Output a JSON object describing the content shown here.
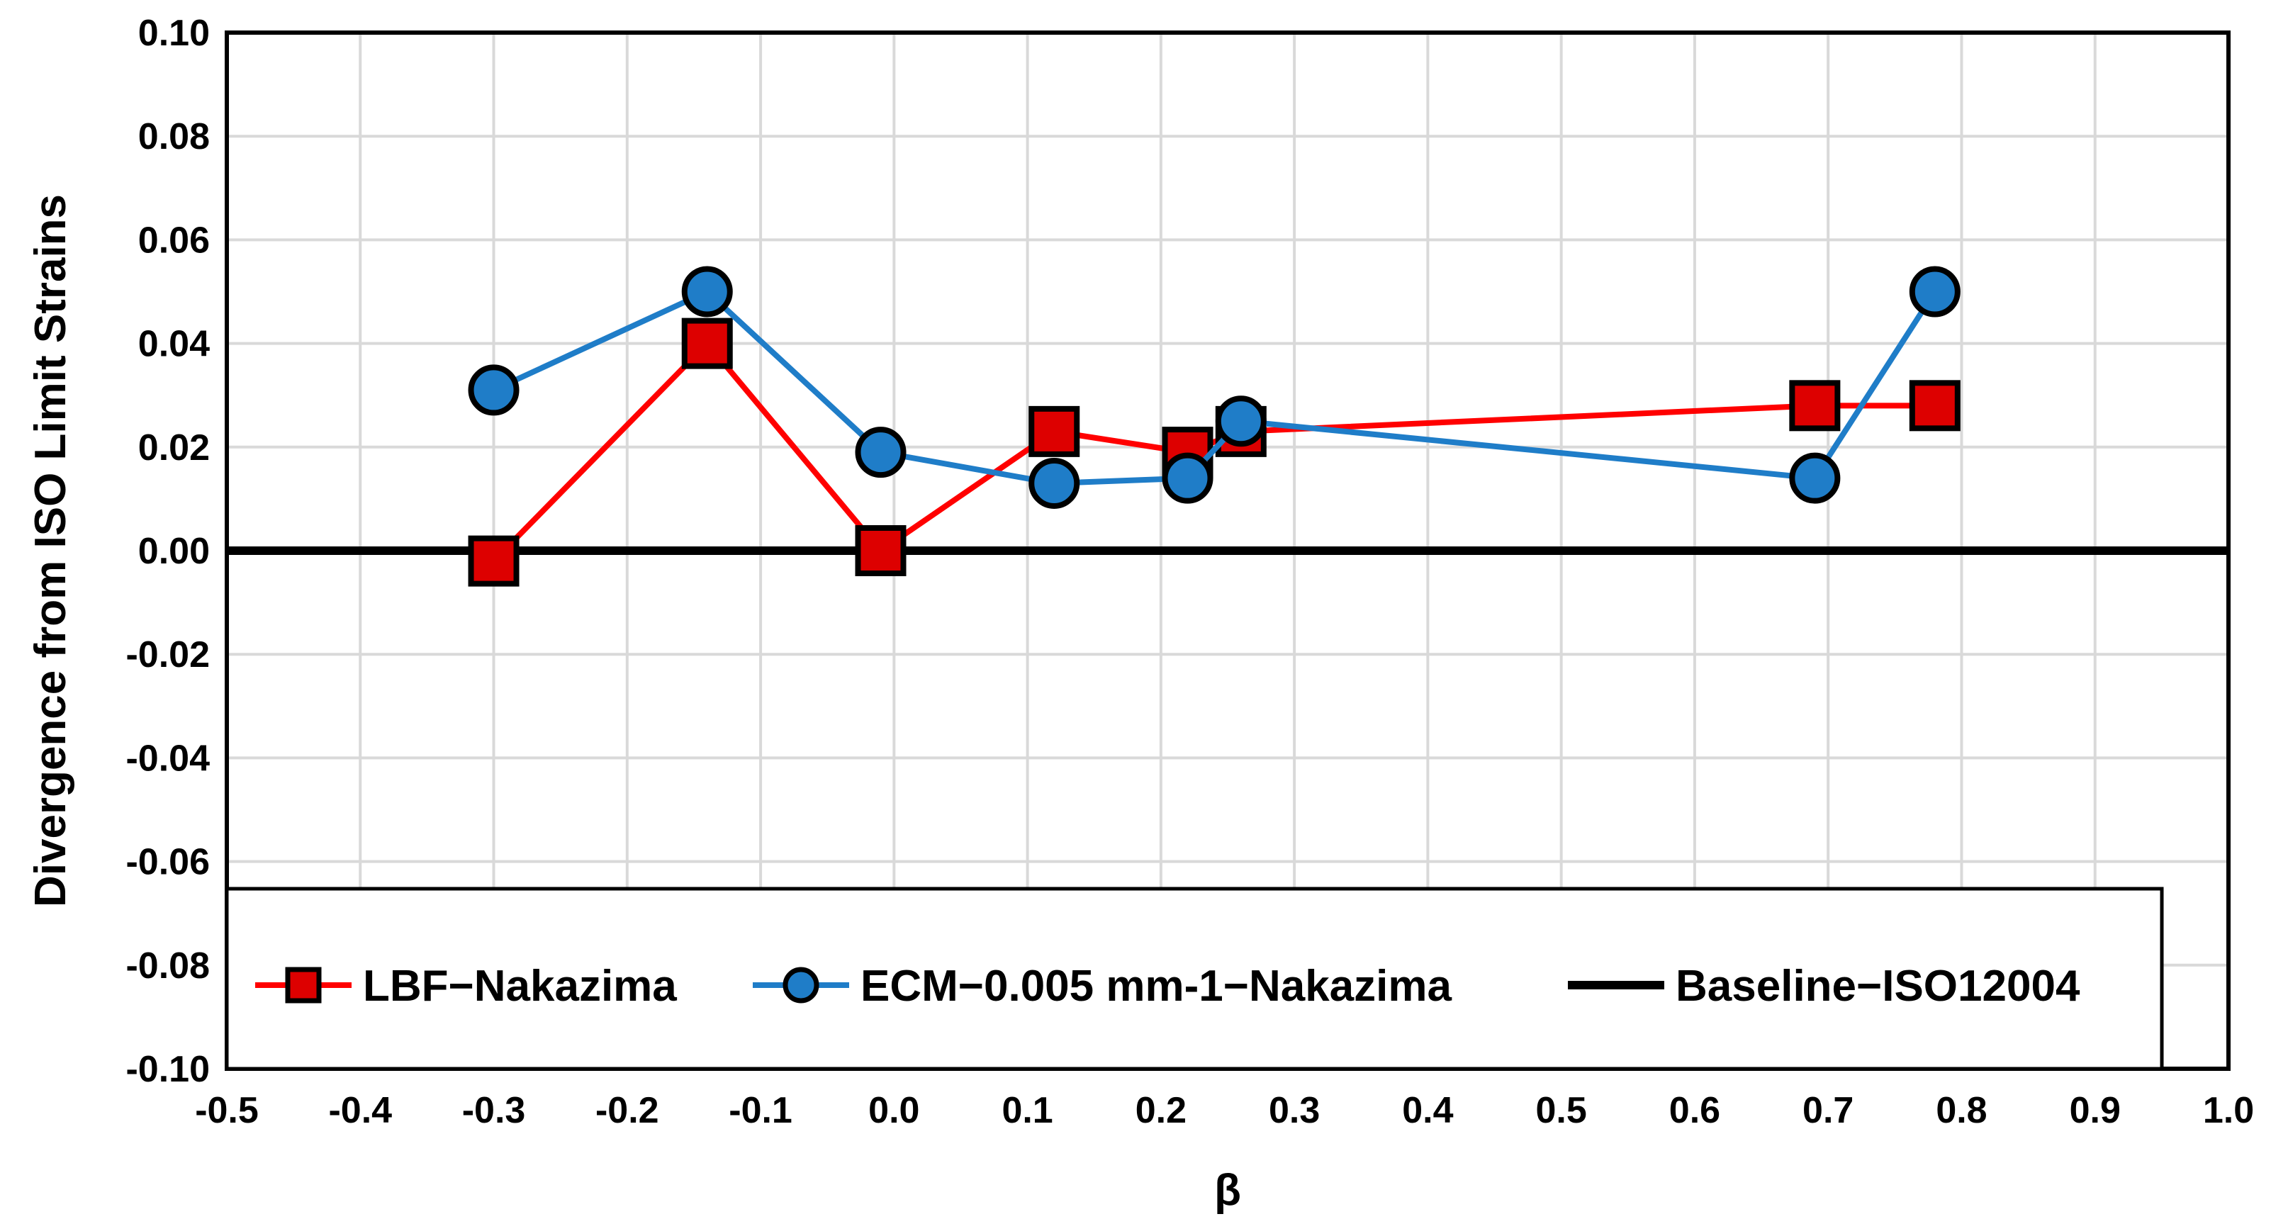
{
  "chart_data": {
    "type": "line",
    "title": "",
    "xlabel": "β",
    "ylabel": "Divergence from ISO Limit Strains",
    "xlim": [
      -0.5,
      1.0
    ],
    "ylim": [
      -0.1,
      0.1
    ],
    "x_ticks": [
      "-0.5",
      "-0.4",
      "-0.3",
      "-0.2",
      "-0.1",
      "0.0",
      "0.1",
      "0.2",
      "0.3",
      "0.4",
      "0.5",
      "0.6",
      "0.7",
      "0.8",
      "0.9",
      "1.0"
    ],
    "y_ticks": [
      "0.10",
      "0.08",
      "0.06",
      "0.04",
      "0.02",
      "0.00",
      "-0.02",
      "-0.04",
      "-0.06",
      "-0.08",
      "-0.10"
    ],
    "grid": true,
    "legend_position": "bottom",
    "series": [
      {
        "name": "LBF−Nakazima",
        "color": "#ff0000",
        "marker_fill": "#dd0000",
        "marker": "square",
        "x": [
          -0.3,
          -0.14,
          -0.01,
          0.12,
          0.22,
          0.26,
          0.69,
          0.78
        ],
        "y": [
          -0.002,
          0.04,
          0.0,
          0.023,
          0.019,
          0.023,
          0.028,
          0.028
        ]
      },
      {
        "name": "ECM−0.005 mm-1−Nakazima",
        "color": "#1f7dc8",
        "marker_fill": "#1f7dc8",
        "marker": "circle",
        "x": [
          -0.3,
          -0.14,
          -0.01,
          0.12,
          0.22,
          0.26,
          0.69,
          0.78
        ],
        "y": [
          0.031,
          0.05,
          0.019,
          0.013,
          0.014,
          0.025,
          0.014,
          0.05
        ]
      },
      {
        "name": "Baseline−ISO12004",
        "color": "#000000",
        "marker": "none",
        "x": [
          -0.5,
          1.0
        ],
        "y": [
          0.0,
          0.0
        ]
      }
    ]
  }
}
